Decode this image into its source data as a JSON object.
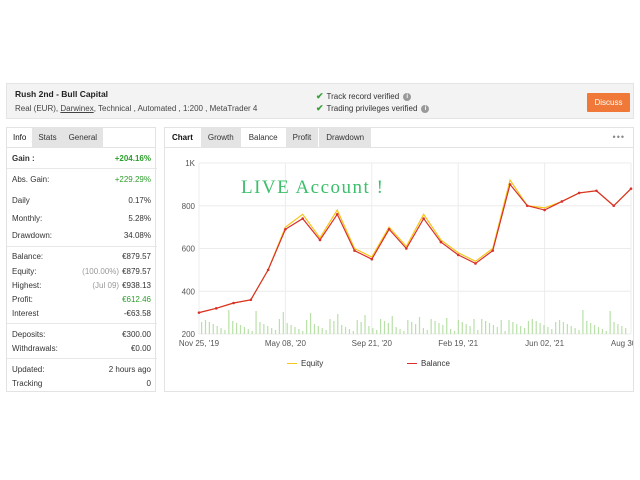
{
  "header": {
    "title": "Rush 2nd - Bull Capital",
    "sub_prefix": "Real (EUR),",
    "sub_link": "Darwinex",
    "sub_suffix": ", Technical , Automated , 1:200 , MetaTrader 4",
    "verify": [
      {
        "label": "Track record verified",
        "icon": "check-icon"
      },
      {
        "label": "Trading privileges verified",
        "icon": "check-icon"
      }
    ],
    "discuss_label": "Discuss"
  },
  "left_panel": {
    "tabs": [
      "Info",
      "Stats",
      "General"
    ],
    "rows": [
      {
        "label": "Gain :",
        "value": "+204.16%",
        "value_color": "green",
        "bold": true
      },
      {
        "label": "Abs. Gain:",
        "value": "+229.29%",
        "value_color": "green"
      },
      {
        "label": "Daily",
        "value": "0.17%"
      },
      {
        "label": "Monthly:",
        "value": "5.28%"
      },
      {
        "label": "Drawdown:",
        "value": "34.08%"
      },
      {
        "label": "Balance:",
        "value": "€879.57"
      },
      {
        "label": "Equity:",
        "note": "(100.00%)",
        "value": "€879.57"
      },
      {
        "label": "Highest:",
        "note": "(Jul 09)",
        "value": "€938.13"
      },
      {
        "label": "Profit:",
        "value": "€612.46",
        "value_color": "green"
      },
      {
        "label": "Interest",
        "value": "-€63.58"
      },
      {
        "label": "Deposits:",
        "value": "€300.00"
      },
      {
        "label": "Withdrawals:",
        "value": "€0.00"
      },
      {
        "label": "Updated:",
        "value": "2 hours ago"
      },
      {
        "label": "Tracking",
        "value": "0"
      }
    ]
  },
  "chart_panel": {
    "tabs": [
      "Chart",
      "Growth",
      "Balance",
      "Profit",
      "Drawdown"
    ],
    "active_tab": "Balance",
    "more_icon": "ellipsis-icon"
  },
  "chart_data": {
    "type": "line",
    "title": "",
    "annotation": "LIVE Account !",
    "xlabel": "",
    "ylabel": "",
    "ylim": [
      200,
      1000
    ],
    "y_ticks": [
      "200",
      "400",
      "600",
      "800",
      "1K"
    ],
    "x_ticks": [
      "Nov 25, '19",
      "May 08, '20",
      "Sep 21, '20",
      "Feb 19, '21",
      "Jun 02, '21",
      "Aug 30, '21"
    ],
    "grid": true,
    "legend_position": "bottom",
    "x_index": [
      0,
      4,
      8,
      12,
      16,
      20,
      24,
      28,
      32,
      36,
      40,
      44,
      48,
      52,
      56,
      60,
      64,
      68,
      72,
      76,
      80,
      84,
      88,
      92,
      96,
      100
    ],
    "series": [
      {
        "name": "Equity",
        "color": "#f5c518",
        "values": [
          300,
          320,
          345,
          360,
          500,
          700,
          760,
          650,
          780,
          600,
          560,
          700,
          610,
          760,
          640,
          580,
          540,
          600,
          920,
          800,
          790,
          820,
          860,
          870,
          800,
          880
        ]
      },
      {
        "name": "Balance",
        "color": "#d9302c",
        "values": [
          300,
          320,
          345,
          360,
          500,
          690,
          740,
          640,
          760,
          590,
          550,
          690,
          600,
          740,
          630,
          570,
          530,
          590,
          900,
          800,
          780,
          820,
          860,
          870,
          800,
          880
        ]
      }
    ],
    "volume_color": "#b8e0a8"
  }
}
